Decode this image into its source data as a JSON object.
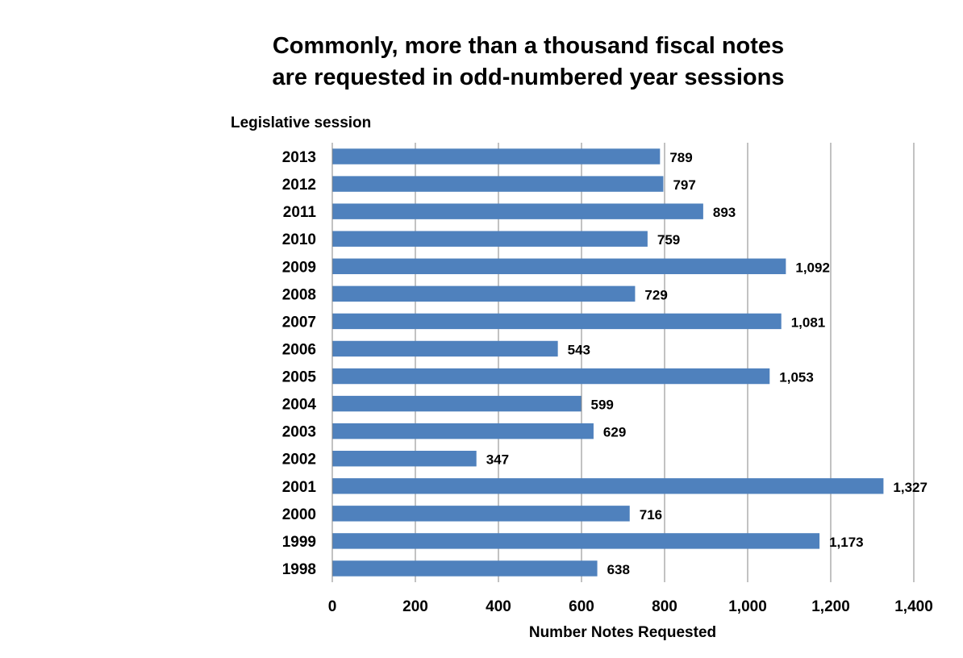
{
  "chart_data": {
    "type": "bar",
    "orientation": "horizontal",
    "title": "Commonly, more than a thousand fiscal notes are requested in odd-numbered year sessions",
    "title_lines": [
      "Commonly, more than a thousand fiscal notes",
      "are requested in odd-numbered year sessions"
    ],
    "ylabel": "Legislative session",
    "xlabel": "Number Notes Requested",
    "categories": [
      "2013",
      "2012",
      "2011",
      "2010",
      "2009",
      "2008",
      "2007",
      "2006",
      "2005",
      "2004",
      "2003",
      "2002",
      "2001",
      "2000",
      "1999",
      "1998"
    ],
    "values": [
      789,
      797,
      893,
      759,
      1092,
      729,
      1081,
      543,
      1053,
      599,
      629,
      347,
      1327,
      716,
      1173,
      638
    ],
    "data_labels": [
      "789",
      "797",
      "893",
      "759",
      "1,092",
      "729",
      "1,081",
      "543",
      "1,053",
      "599",
      "629",
      "347",
      "1,327",
      "716",
      "1,173",
      "638"
    ],
    "xlim": [
      0,
      1400
    ],
    "x_ticks": [
      0,
      200,
      400,
      600,
      800,
      1000,
      1200,
      1400
    ],
    "x_tick_labels": [
      "0",
      "200",
      "400",
      "600",
      "800",
      "1,000",
      "1,200",
      "1,400"
    ],
    "grid": "vertical",
    "legend": "none",
    "bar_color": "#4F81BD",
    "grid_color": "#868686"
  }
}
